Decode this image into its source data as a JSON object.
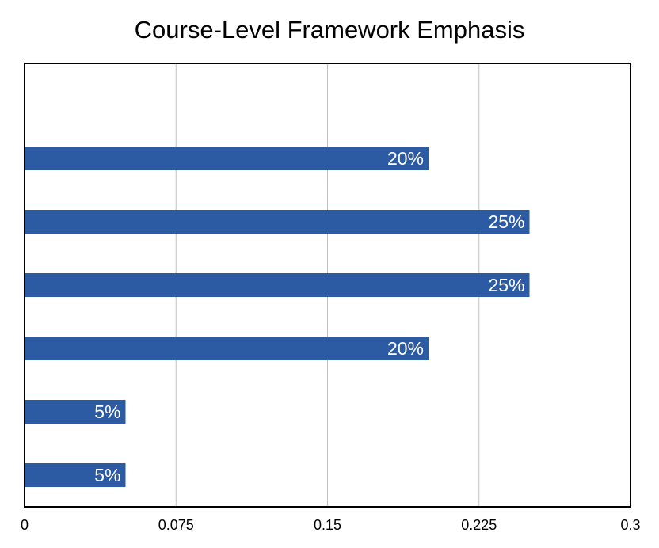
{
  "chart_data": {
    "type": "bar",
    "orientation": "horizontal",
    "title": "Course-Level Framework Emphasis",
    "xlabel": "",
    "ylabel": "",
    "xlim": [
      0,
      0.3
    ],
    "x_ticks": [
      0,
      0.075,
      0.15,
      0.225,
      0.3
    ],
    "x_tick_labels": [
      "0",
      "0.075",
      "0.15",
      "0.225",
      "0.3"
    ],
    "categories": [
      "",
      "",
      "",
      "",
      "",
      ""
    ],
    "values": [
      0.2,
      0.25,
      0.25,
      0.2,
      0.05,
      0.05
    ],
    "data_labels": [
      "20%",
      "25%",
      "25%",
      "20%",
      "5%",
      "5%"
    ],
    "slots": 7,
    "grid": true,
    "legend": "none",
    "colors": {
      "bar": "#2d5ba3",
      "grid": "#c0c0c0",
      "frame": "#000000",
      "data_label": "#ffffff"
    }
  }
}
